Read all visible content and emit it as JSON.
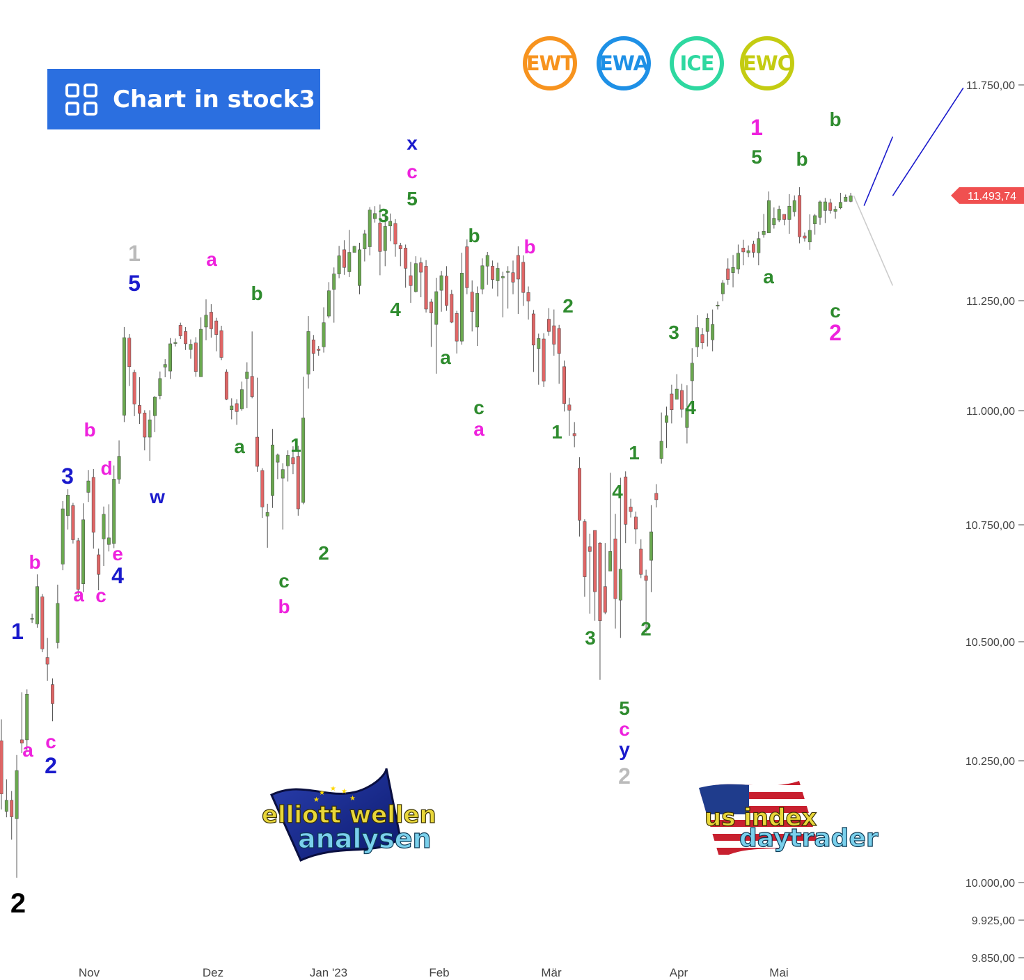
{
  "button": {
    "label": "Chart in stock3",
    "icon": "grid-icon"
  },
  "badges": [
    {
      "text": "EWT",
      "color": "#f7931e"
    },
    {
      "text": "EWA",
      "color": "#1e90e6"
    },
    {
      "text": "ICE",
      "color": "#2ed8a0"
    },
    {
      "text": "EWC",
      "color": "#c4cc12"
    }
  ],
  "logos": {
    "left": {
      "line1": "elliott wellen",
      "line2": "analysen"
    },
    "right": {
      "line1": "us index",
      "line2": "daytrader"
    }
  },
  "chart_data": {
    "type": "candlestick",
    "x_ticks": [
      "Nov",
      "Dez",
      "Jan '23",
      "Feb",
      "Mär",
      "Apr",
      "Mai"
    ],
    "y_ticks": [
      "11.750,00",
      "11.250,00",
      "11.000,00",
      "10.750,00",
      "10.500,00",
      "10.250,00",
      "10.000,00",
      "9.925,00",
      "9.850,00"
    ],
    "y_tick_values": [
      11750,
      11250,
      11000,
      10750,
      10500,
      10250,
      10000,
      9925,
      9850
    ],
    "last_price": {
      "label": "11.493,74",
      "value": 11493.74,
      "color": "#f05050"
    },
    "up_color": "#6aa84f",
    "down_color": "#e06666",
    "candles": [
      [
        10292,
        10182,
        10337,
        10150
      ],
      [
        10146,
        10169,
        10212,
        10134
      ],
      [
        10169,
        10135,
        10188,
        10088
      ],
      [
        10131,
        10230,
        10262,
        10010
      ],
      [
        10294,
        10287,
        10394,
        10266
      ],
      [
        10294,
        10390,
        10400,
        10270
      ],
      [
        10548,
        10550,
        10560,
        10540
      ],
      [
        10538,
        10618,
        10644,
        10530
      ],
      [
        10596,
        10485,
        10602,
        10478
      ],
      [
        10467,
        10453,
        10508,
        10418
      ],
      [
        10410,
        10370,
        10423,
        10333
      ],
      [
        10498,
        10582,
        10622,
        10486
      ],
      [
        10666,
        10785,
        10802,
        10653
      ],
      [
        10770,
        10815,
        10828,
        10740
      ],
      [
        10792,
        10718,
        10798,
        10710
      ],
      [
        10716,
        10612,
        10722,
        10595
      ],
      [
        10624,
        10761,
        10797,
        10606
      ],
      [
        10821,
        10846,
        10870,
        10800
      ],
      [
        10854,
        10734,
        10872,
        10699
      ],
      [
        10686,
        10644,
        10699,
        10610
      ],
      [
        10720,
        10773,
        10790,
        10662
      ],
      [
        10708,
        10722,
        10795,
        10693
      ],
      [
        10710,
        10850,
        10880,
        10700
      ],
      [
        10850,
        10900,
        10935,
        10840
      ],
      [
        10990,
        11166,
        11190,
        10975
      ],
      [
        11165,
        11100,
        11174,
        11056
      ],
      [
        11087,
        11015,
        11093,
        10988
      ],
      [
        11012,
        10994,
        11076,
        10971
      ],
      [
        10995,
        10942,
        11001,
        10913
      ],
      [
        10942,
        10980,
        11001,
        10890
      ],
      [
        10989,
        11031,
        11033,
        10953
      ],
      [
        11034,
        11073,
        11089,
        11026
      ],
      [
        11099,
        11105,
        11117,
        11076
      ],
      [
        11090,
        11152,
        11165,
        11072
      ],
      [
        11155,
        11155,
        11164,
        11146
      ],
      [
        11194,
        11170,
        11200,
        11163
      ],
      [
        11180,
        11152,
        11190,
        11138
      ],
      [
        11139,
        11151,
        11162,
        11118
      ],
      [
        11154,
        11089,
        11167,
        11077
      ],
      [
        11077,
        11185,
        11212,
        11077
      ],
      [
        11190,
        11217,
        11253,
        11160
      ],
      [
        11224,
        11186,
        11242,
        11166
      ],
      [
        11204,
        11173,
        11211,
        11135
      ],
      [
        11182,
        11121,
        11193,
        11115
      ],
      [
        11088,
        11026,
        11094,
        11024
      ],
      [
        11002,
        11011,
        11028,
        10981
      ],
      [
        11016,
        10998,
        11026,
        10969
      ],
      [
        11004,
        11048,
        11066,
        11000
      ],
      [
        11073,
        11088,
        11110,
        11006
      ],
      [
        11078,
        11032,
        11180,
        11028
      ],
      [
        10942,
        10878,
        11075,
        10866
      ],
      [
        10869,
        10789,
        10874,
        10765
      ],
      [
        10769,
        10777,
        10796,
        10701
      ],
      [
        10814,
        10925,
        10960,
        10787
      ],
      [
        10887,
        10903,
        10906,
        10850
      ],
      [
        10852,
        10871,
        10885,
        10740
      ],
      [
        10879,
        10902,
        10913,
        10845
      ],
      [
        10897,
        10883,
        10922,
        10861
      ],
      [
        10900,
        10785,
        10923,
        10770
      ],
      [
        10799,
        10984,
        11077,
        10795
      ],
      [
        11083,
        11180,
        11215,
        11050
      ],
      [
        11161,
        11130,
        11172,
        11090
      ],
      [
        11140,
        11137,
        11147,
        11125
      ],
      [
        11145,
        11200,
        11235,
        11132
      ],
      [
        11215,
        11273,
        11293,
        11210
      ],
      [
        11276,
        11312,
        11327,
        11200
      ],
      [
        11312,
        11354,
        11377,
        11302
      ],
      [
        11368,
        11327,
        11390,
        11310
      ],
      [
        11317,
        11362,
        11414,
        11305
      ],
      [
        11362,
        11376,
        11377,
        11372
      ],
      [
        11285,
        11368,
        11384,
        11265
      ],
      [
        11370,
        11405,
        11414,
        11341
      ],
      [
        11375,
        11460,
        11467,
        11355
      ],
      [
        11440,
        11452,
        11469,
        11431
      ],
      [
        11430,
        11364,
        11473,
        11309
      ],
      [
        11366,
        11422,
        11448,
        11330
      ],
      [
        11423,
        11434,
        11452,
        11388
      ],
      [
        11429,
        11381,
        11439,
        11352
      ],
      [
        11378,
        11370,
        11384,
        11330
      ],
      [
        11372,
        11325,
        11380,
        11280
      ],
      [
        11308,
        11285,
        11340,
        11245
      ],
      [
        11271,
        11336,
        11353,
        11269
      ],
      [
        11338,
        11316,
        11350,
        11258
      ],
      [
        11330,
        11231,
        11344,
        11223
      ],
      [
        11247,
        11222,
        11254,
        11145
      ],
      [
        11196,
        11271,
        11303,
        11084
      ],
      [
        11274,
        11308,
        11319,
        11225
      ],
      [
        11307,
        11239,
        11330,
        11227
      ],
      [
        11265,
        11201,
        11275,
        11199
      ],
      [
        11221,
        11158,
        11227,
        11130
      ],
      [
        11158,
        11314,
        11361,
        11150
      ],
      [
        11375,
        11280,
        11392,
        11265
      ],
      [
        11270,
        11225,
        11297,
        11180
      ],
      [
        11190,
        11267,
        11283,
        11147
      ],
      [
        11277,
        11331,
        11348,
        11265
      ],
      [
        11330,
        11355,
        11363,
        11287
      ],
      [
        11330,
        11299,
        11343,
        11278
      ],
      [
        11296,
        11325,
        11338,
        11260
      ],
      [
        11303,
        11306,
        11317,
        11212
      ],
      [
        11317,
        11318,
        11330,
        11232
      ],
      [
        11315,
        11293,
        11343,
        11265
      ],
      [
        11355,
        11300,
        11376,
        11220
      ],
      [
        11339,
        11269,
        11355,
        11238
      ],
      [
        11269,
        11249,
        11283,
        11207
      ],
      [
        11220,
        11149,
        11229,
        11088
      ],
      [
        11141,
        11164,
        11175,
        11059
      ],
      [
        11163,
        11067,
        11176,
        11054
      ],
      [
        11208,
        11180,
        11233,
        11170
      ],
      [
        11193,
        11151,
        11230,
        11125
      ],
      [
        11187,
        11130,
        11195,
        11061
      ],
      [
        11100,
        11016,
        11114,
        10998
      ],
      [
        11013,
        11001,
        11029,
        10945
      ],
      [
        10950,
        10945,
        10975,
        10920
      ],
      [
        10874,
        10760,
        10898,
        10725
      ],
      [
        10757,
        10639,
        10762,
        10596
      ],
      [
        10703,
        10693,
        10731,
        10560
      ],
      [
        10738,
        10607,
        10731,
        10545
      ],
      [
        10711,
        10545,
        10713,
        10420
      ],
      [
        10618,
        10563,
        10711,
        10559
      ],
      [
        10651,
        10693,
        10864,
        10654
      ],
      [
        10720,
        10592,
        10774,
        10528
      ],
      [
        10589,
        10655,
        10853,
        10508
      ],
      [
        10855,
        10751,
        10867,
        10711
      ],
      [
        10789,
        10779,
        10807,
        10766
      ],
      [
        10767,
        10741,
        10779,
        10709
      ],
      [
        10698,
        10644,
        10719,
        10636
      ],
      [
        10641,
        10631,
        10654,
        10520
      ],
      [
        10674,
        10735,
        10793,
        10606
      ],
      [
        10819,
        10805,
        10839,
        10788
      ],
      [
        10895,
        10933,
        10996,
        10884
      ],
      [
        10974,
        10989,
        11009,
        10918
      ],
      [
        11038,
        11002,
        11059,
        10972
      ],
      [
        11026,
        11049,
        11083,
        11036
      ],
      [
        11046,
        11003,
        11061,
        10985
      ],
      [
        10963,
        11005,
        11058,
        10928
      ],
      [
        11068,
        11108,
        11142,
        11008
      ],
      [
        11145,
        11189,
        11217,
        11122
      ],
      [
        11173,
        11154,
        11188,
        11140
      ],
      [
        11180,
        11210,
        11221,
        11146
      ],
      [
        11161,
        11196,
        11230,
        11135
      ],
      [
        11240,
        11240,
        11248,
        11230
      ],
      [
        11266,
        11291,
        11298,
        11249
      ],
      [
        11324,
        11299,
        11348,
        11287
      ],
      [
        11315,
        11327,
        11356,
        11281
      ],
      [
        11323,
        11360,
        11380,
        11312
      ],
      [
        11372,
        11363,
        11391,
        11332
      ],
      [
        11361,
        11366,
        11378,
        11351
      ],
      [
        11381,
        11362,
        11389,
        11350
      ],
      [
        11361,
        11394,
        11410,
        11332
      ],
      [
        11403,
        11411,
        11451,
        11396
      ],
      [
        11407,
        11482,
        11503,
        11412
      ],
      [
        11426,
        11441,
        11466,
        11417
      ],
      [
        11437,
        11462,
        11470,
        11432
      ],
      [
        11450,
        11438,
        11445,
        11425
      ],
      [
        11438,
        11469,
        11497,
        11405
      ],
      [
        11456,
        11482,
        11494,
        11445
      ],
      [
        11494,
        11398,
        11513,
        11383
      ],
      [
        11400,
        11395,
        11408,
        11387
      ],
      [
        11386,
        11413,
        11450,
        11368
      ],
      [
        11428,
        11447,
        11451,
        11403
      ],
      [
        11443,
        11479,
        11482,
        11426
      ],
      [
        11459,
        11479,
        11488,
        11430
      ],
      [
        11477,
        11459,
        11486,
        11452
      ],
      [
        11457,
        11462,
        11469,
        11440
      ],
      [
        11465,
        11478,
        11500,
        11462
      ],
      [
        11480,
        11490,
        11496,
        11483
      ],
      [
        11480,
        11493,
        11500,
        11478
      ]
    ],
    "projection": [
      {
        "color": "#cccccc",
        "points": [
          [
            11493,
            11493
          ],
          [
            11493,
            11285
          ]
        ]
      },
      {
        "color": "#1a1acc",
        "points": [
          [
            11493,
            11493
          ],
          [
            11285,
            11743
          ]
        ]
      }
    ],
    "labels": [
      {
        "text": "2",
        "color": "#000000",
        "size": 40
      },
      {
        "text": "1",
        "color": "#1a1acc",
        "size": 32
      },
      {
        "text": "a",
        "color": "#ee22dd",
        "size": 28
      },
      {
        "text": "b",
        "color": "#ee22dd",
        "size": 28
      },
      {
        "text": "c",
        "color": "#ee22dd",
        "size": 28
      },
      {
        "text": "2",
        "color": "#1a1acc",
        "size": 32
      },
      {
        "text": "3",
        "color": "#1a1acc",
        "size": 32
      },
      {
        "text": "a",
        "color": "#ee22dd",
        "size": 28
      },
      {
        "text": "b",
        "color": "#ee22dd",
        "size": 28
      },
      {
        "text": "c",
        "color": "#ee22dd",
        "size": 28
      },
      {
        "text": "d",
        "color": "#ee22dd",
        "size": 28
      },
      {
        "text": "e",
        "color": "#ee22dd",
        "size": 28
      },
      {
        "text": "4",
        "color": "#1a1acc",
        "size": 32
      },
      {
        "text": "1",
        "color": "#bbbbbb",
        "size": 32
      },
      {
        "text": "5",
        "color": "#1a1acc",
        "size": 32
      },
      {
        "text": "w",
        "color": "#1a1acc",
        "size": 28
      },
      {
        "text": "a",
        "color": "#ee22dd",
        "size": 28
      },
      {
        "text": "b",
        "color": "#2e8b2e",
        "size": 28
      },
      {
        "text": "a",
        "color": "#2e8b2e",
        "size": 28
      },
      {
        "text": "c",
        "color": "#2e8b2e",
        "size": 28
      },
      {
        "text": "b",
        "color": "#ee22dd",
        "size": 28
      },
      {
        "text": "1",
        "color": "#2e8b2e",
        "size": 28
      },
      {
        "text": "2",
        "color": "#2e8b2e",
        "size": 28
      },
      {
        "text": "x",
        "color": "#1a1acc",
        "size": 28
      },
      {
        "text": "c",
        "color": "#ee22dd",
        "size": 28
      },
      {
        "text": "5",
        "color": "#2e8b2e",
        "size": 28
      },
      {
        "text": "3",
        "color": "#2e8b2e",
        "size": 28
      },
      {
        "text": "4",
        "color": "#2e8b2e",
        "size": 28
      },
      {
        "text": "a",
        "color": "#2e8b2e",
        "size": 28
      },
      {
        "text": "b",
        "color": "#2e8b2e",
        "size": 28
      },
      {
        "text": "c",
        "color": "#2e8b2e",
        "size": 28
      },
      {
        "text": "a",
        "color": "#ee22dd",
        "size": 28
      },
      {
        "text": "b",
        "color": "#ee22dd",
        "size": 28
      },
      {
        "text": "2",
        "color": "#2e8b2e",
        "size": 28
      },
      {
        "text": "1",
        "color": "#2e8b2e",
        "size": 28
      },
      {
        "text": "3",
        "color": "#2e8b2e",
        "size": 28
      },
      {
        "text": "4",
        "color": "#2e8b2e",
        "size": 28
      },
      {
        "text": "1",
        "color": "#2e8b2e",
        "size": 28
      },
      {
        "text": "2",
        "color": "#2e8b2e",
        "size": 28
      },
      {
        "text": "5",
        "color": "#2e8b2e",
        "size": 28
      },
      {
        "text": "c",
        "color": "#ee22dd",
        "size": 28
      },
      {
        "text": "y",
        "color": "#1a1acc",
        "size": 28
      },
      {
        "text": "2",
        "color": "#bbbbbb",
        "size": 32
      },
      {
        "text": "3",
        "color": "#2e8b2e",
        "size": 28
      },
      {
        "text": "4",
        "color": "#2e8b2e",
        "size": 28
      },
      {
        "text": "1",
        "color": "#ee22dd",
        "size": 32
      },
      {
        "text": "5",
        "color": "#2e8b2e",
        "size": 28
      },
      {
        "text": "a",
        "color": "#2e8b2e",
        "size": 28
      },
      {
        "text": "b",
        "color": "#2e8b2e",
        "size": 28
      },
      {
        "text": "b",
        "color": "#2e8b2e",
        "size": 28
      },
      {
        "text": "c",
        "color": "#2e8b2e",
        "size": 28
      },
      {
        "text": "2",
        "color": "#ee22dd",
        "size": 32
      }
    ]
  }
}
